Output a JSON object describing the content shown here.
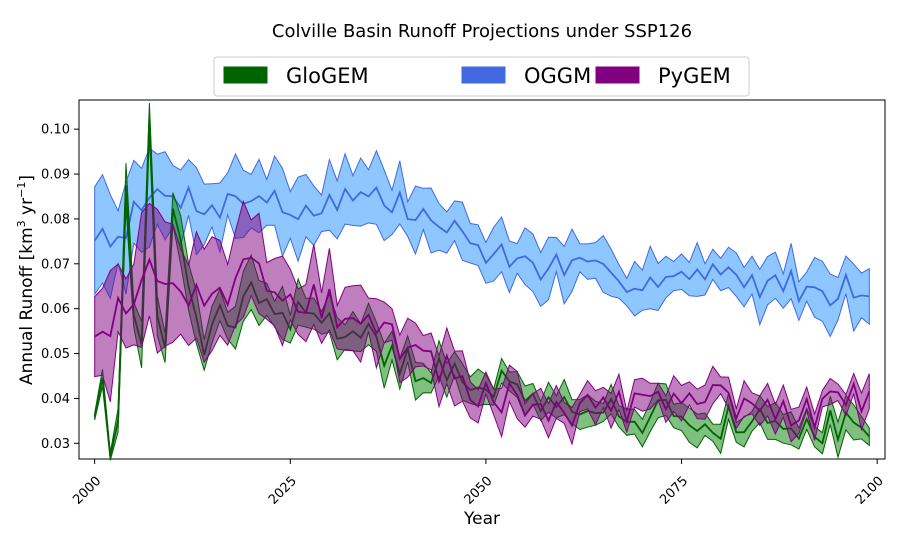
{
  "chart_data": {
    "type": "area",
    "title": "Colville Basin Runoff Projections under SSP126",
    "xlabel": "Year",
    "ylabel_main": "Annual Runoff [km",
    "ylabel_sup": "3",
    "ylabel_mid": " yr",
    "ylabel_sup2": "−1",
    "ylabel_end": "]",
    "xlim": [
      1998,
      2101
    ],
    "ylim": [
      0.0265,
      0.1065
    ],
    "x_ticks": [
      2000,
      2025,
      2050,
      2075,
      2100
    ],
    "y_ticks": [
      0.03,
      0.04,
      0.05,
      0.06,
      0.07,
      0.08,
      0.09,
      0.1
    ],
    "y_tick_labels": [
      "0.03",
      "0.04",
      "0.05",
      "0.06",
      "0.07",
      "0.08",
      "0.09",
      "0.10"
    ],
    "legend_position": "top-center",
    "x_start": 2000,
    "x_end": 2099,
    "series": [
      {
        "name": "OGGM",
        "color": "#4169e1",
        "fill": "#1e90ff",
        "anchors_x": [
          2000,
          2003,
          2007,
          2010,
          2013,
          2016,
          2019,
          2022,
          2025,
          2028,
          2032,
          2036,
          2040,
          2045,
          2050,
          2055,
          2060,
          2065,
          2070,
          2075,
          2080,
          2085,
          2090,
          2095,
          2099
        ],
        "anchors_mean": [
          0.077,
          0.077,
          0.084,
          0.086,
          0.084,
          0.083,
          0.085,
          0.085,
          0.081,
          0.083,
          0.085,
          0.085,
          0.082,
          0.078,
          0.073,
          0.07,
          0.069,
          0.067,
          0.067,
          0.067,
          0.067,
          0.066,
          0.065,
          0.064,
          0.066
        ],
        "anchors_halfwidth": [
          0.009,
          0.009,
          0.009,
          0.007,
          0.007,
          0.007,
          0.007,
          0.007,
          0.007,
          0.007,
          0.006,
          0.006,
          0.006,
          0.006,
          0.005,
          0.005,
          0.005,
          0.005,
          0.005,
          0.005,
          0.005,
          0.005,
          0.005,
          0.005,
          0.006
        ],
        "noise": 0.0035,
        "seed": 7
      },
      {
        "name": "GloGEM",
        "color": "#006400",
        "fill": "#008000",
        "anchors_x": [
          2000,
          2001,
          2002,
          2003,
          2004,
          2005,
          2006,
          2007,
          2008,
          2009,
          2010,
          2012,
          2014,
          2016,
          2018,
          2020,
          2022,
          2025,
          2030,
          2035,
          2040,
          2045,
          2050,
          2055,
          2060,
          2065,
          2070,
          2075,
          2080,
          2085,
          2090,
          2095,
          2099
        ],
        "anchors_mean": [
          0.038,
          0.047,
          0.028,
          0.036,
          0.09,
          0.06,
          0.055,
          0.1,
          0.055,
          0.05,
          0.086,
          0.065,
          0.05,
          0.06,
          0.055,
          0.065,
          0.06,
          0.058,
          0.057,
          0.053,
          0.048,
          0.045,
          0.043,
          0.041,
          0.04,
          0.038,
          0.036,
          0.036,
          0.035,
          0.034,
          0.034,
          0.034,
          0.035
        ],
        "anchors_halfwidth": [
          0.001,
          0.002,
          0.001,
          0.002,
          0.004,
          0.004,
          0.004,
          0.004,
          0.004,
          0.004,
          0.004,
          0.005,
          0.005,
          0.005,
          0.005,
          0.005,
          0.005,
          0.004,
          0.004,
          0.004,
          0.004,
          0.003,
          0.003,
          0.003,
          0.003,
          0.003,
          0.003,
          0.003,
          0.003,
          0.003,
          0.003,
          0.003,
          0.003
        ],
        "noise": 0.004,
        "seed": 21
      },
      {
        "name": "PyGEM",
        "color": "#800080",
        "fill": "#800080",
        "anchors_x": [
          2000,
          2002,
          2004,
          2007,
          2010,
          2013,
          2016,
          2019,
          2022,
          2025,
          2030,
          2035,
          2040,
          2045,
          2050,
          2055,
          2060,
          2065,
          2070,
          2075,
          2080,
          2085,
          2090,
          2095,
          2099
        ],
        "anchors_mean": [
          0.056,
          0.058,
          0.06,
          0.068,
          0.068,
          0.063,
          0.062,
          0.07,
          0.068,
          0.064,
          0.06,
          0.056,
          0.05,
          0.045,
          0.042,
          0.039,
          0.038,
          0.038,
          0.038,
          0.039,
          0.039,
          0.038,
          0.037,
          0.038,
          0.04
        ],
        "anchors_halfwidth": [
          0.012,
          0.012,
          0.012,
          0.012,
          0.011,
          0.011,
          0.011,
          0.01,
          0.009,
          0.008,
          0.007,
          0.006,
          0.005,
          0.005,
          0.004,
          0.004,
          0.003,
          0.003,
          0.003,
          0.003,
          0.003,
          0.003,
          0.003,
          0.003,
          0.003
        ],
        "noise": 0.0045,
        "seed": 43
      }
    ],
    "legend_order": [
      "GloGEM",
      "OGGM",
      "PyGEM"
    ],
    "draw_order": [
      "OGGM",
      "GloGEM",
      "PyGEM"
    ]
  }
}
